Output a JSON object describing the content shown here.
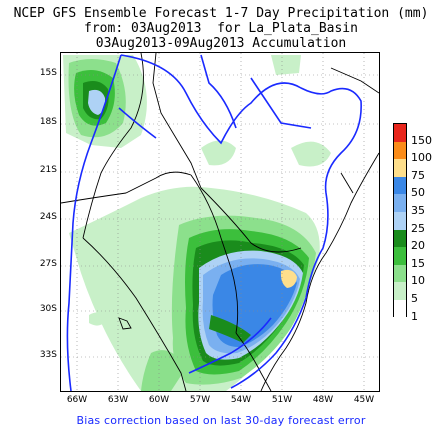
{
  "header": {
    "line1": "NCEP GFS Ensemble Forecast 1-7 Day Precipitation (mm)",
    "line2": "from: 03Aug2013  for La_Plata_Basin",
    "line3": "03Aug2013-09Aug2013 Accumulation"
  },
  "map": {
    "region": "La_Plata_Basin",
    "lat_labels": [
      "15S",
      "18S",
      "21S",
      "24S",
      "27S",
      "30S",
      "33S"
    ],
    "lon_labels": [
      "66W",
      "63W",
      "60W",
      "57W",
      "54W",
      "51W",
      "48W",
      "45W"
    ],
    "colors": {
      "basin_boundary": "#1a2aff",
      "country_borders": "#000000",
      "gridlines": "#888888"
    }
  },
  "legend": {
    "levels": [
      {
        "label": "150",
        "color": "#e8261c"
      },
      {
        "label": "100",
        "color": "#fb8c19"
      },
      {
        "label": "75",
        "color": "#fedf8c"
      },
      {
        "label": "50",
        "color": "#3a87e6"
      },
      {
        "label": "35",
        "color": "#7ab0f0"
      },
      {
        "label": "25",
        "color": "#aed2f5"
      },
      {
        "label": "20",
        "color": "#1a8c1c"
      },
      {
        "label": "15",
        "color": "#3cbf3c"
      },
      {
        "label": "10",
        "color": "#8ce08c"
      },
      {
        "label": "5",
        "color": "#c8f0c8"
      },
      {
        "label": "1",
        "color": "#ffffff"
      }
    ]
  },
  "footer": {
    "bias_note": "Bias correction based on last 30-day forecast error"
  }
}
